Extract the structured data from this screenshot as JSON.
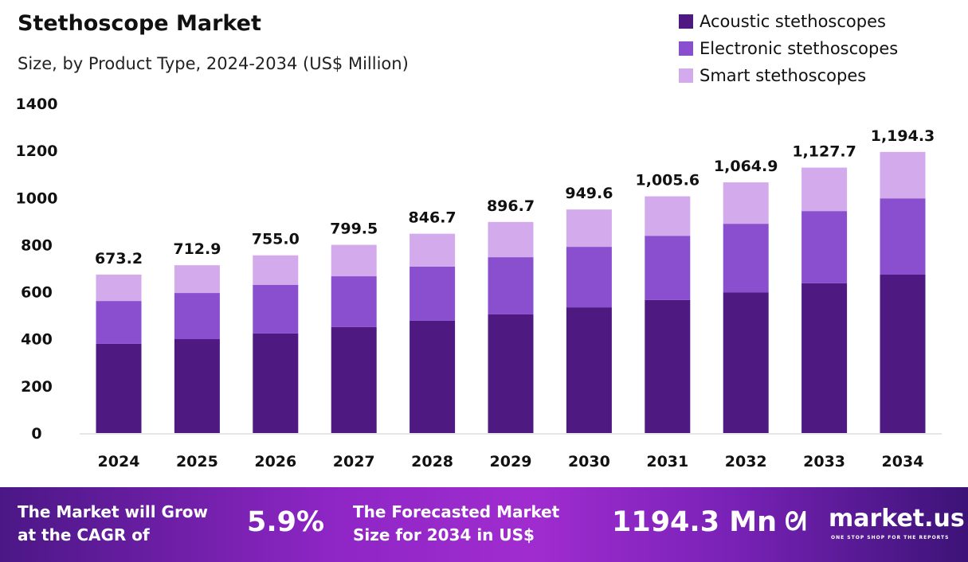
{
  "chart_data": {
    "type": "bar",
    "stacked": true,
    "title": "Stethoscope Market",
    "subtitle": "Size, by Product Type, 2024-2034 (US$ Million)",
    "categories": [
      "2024",
      "2025",
      "2026",
      "2027",
      "2028",
      "2029",
      "2030",
      "2031",
      "2032",
      "2033",
      "2034"
    ],
    "series": [
      {
        "name": "Acoustic stethoscopes",
        "color": "#4e1a82",
        "values": [
          379,
          399,
          423,
          450,
          477,
          504,
          534,
          565,
          598,
          636,
          673
        ]
      },
      {
        "name": "Electronic stethoscopes",
        "color": "#8a4fcf",
        "values": [
          182,
          196,
          206,
          216,
          230,
          243,
          257,
          273,
          291,
          307,
          324
        ]
      },
      {
        "name": "Smart stethoscopes",
        "color": "#d3aaec",
        "values": [
          112.2,
          117.9,
          126.0,
          133.5,
          139.7,
          149.7,
          158.6,
          167.6,
          175.9,
          184.7,
          197.3
        ]
      }
    ],
    "totals": [
      "673.2",
      "712.9",
      "755.0",
      "799.5",
      "846.7",
      "896.7",
      "949.6",
      "1,005.6",
      "1,064.9",
      "1,127.7",
      "1,194.3"
    ],
    "ylim": [
      0,
      1400
    ],
    "yticks": [
      0,
      200,
      400,
      600,
      800,
      1000,
      1200,
      1400
    ],
    "grid": false,
    "legend": "top-right"
  },
  "footer": {
    "cagr_text_1": "The Market will Grow",
    "cagr_text_2": "at the CAGR of",
    "cagr_value": "5.9%",
    "forecast_text_1": "The Forecasted Market",
    "forecast_text_2": "Size for 2034 in US$",
    "forecast_value": "1194.3 Mn",
    "brand": "market.us",
    "tagline": "ONE STOP SHOP FOR THE REPORTS"
  }
}
